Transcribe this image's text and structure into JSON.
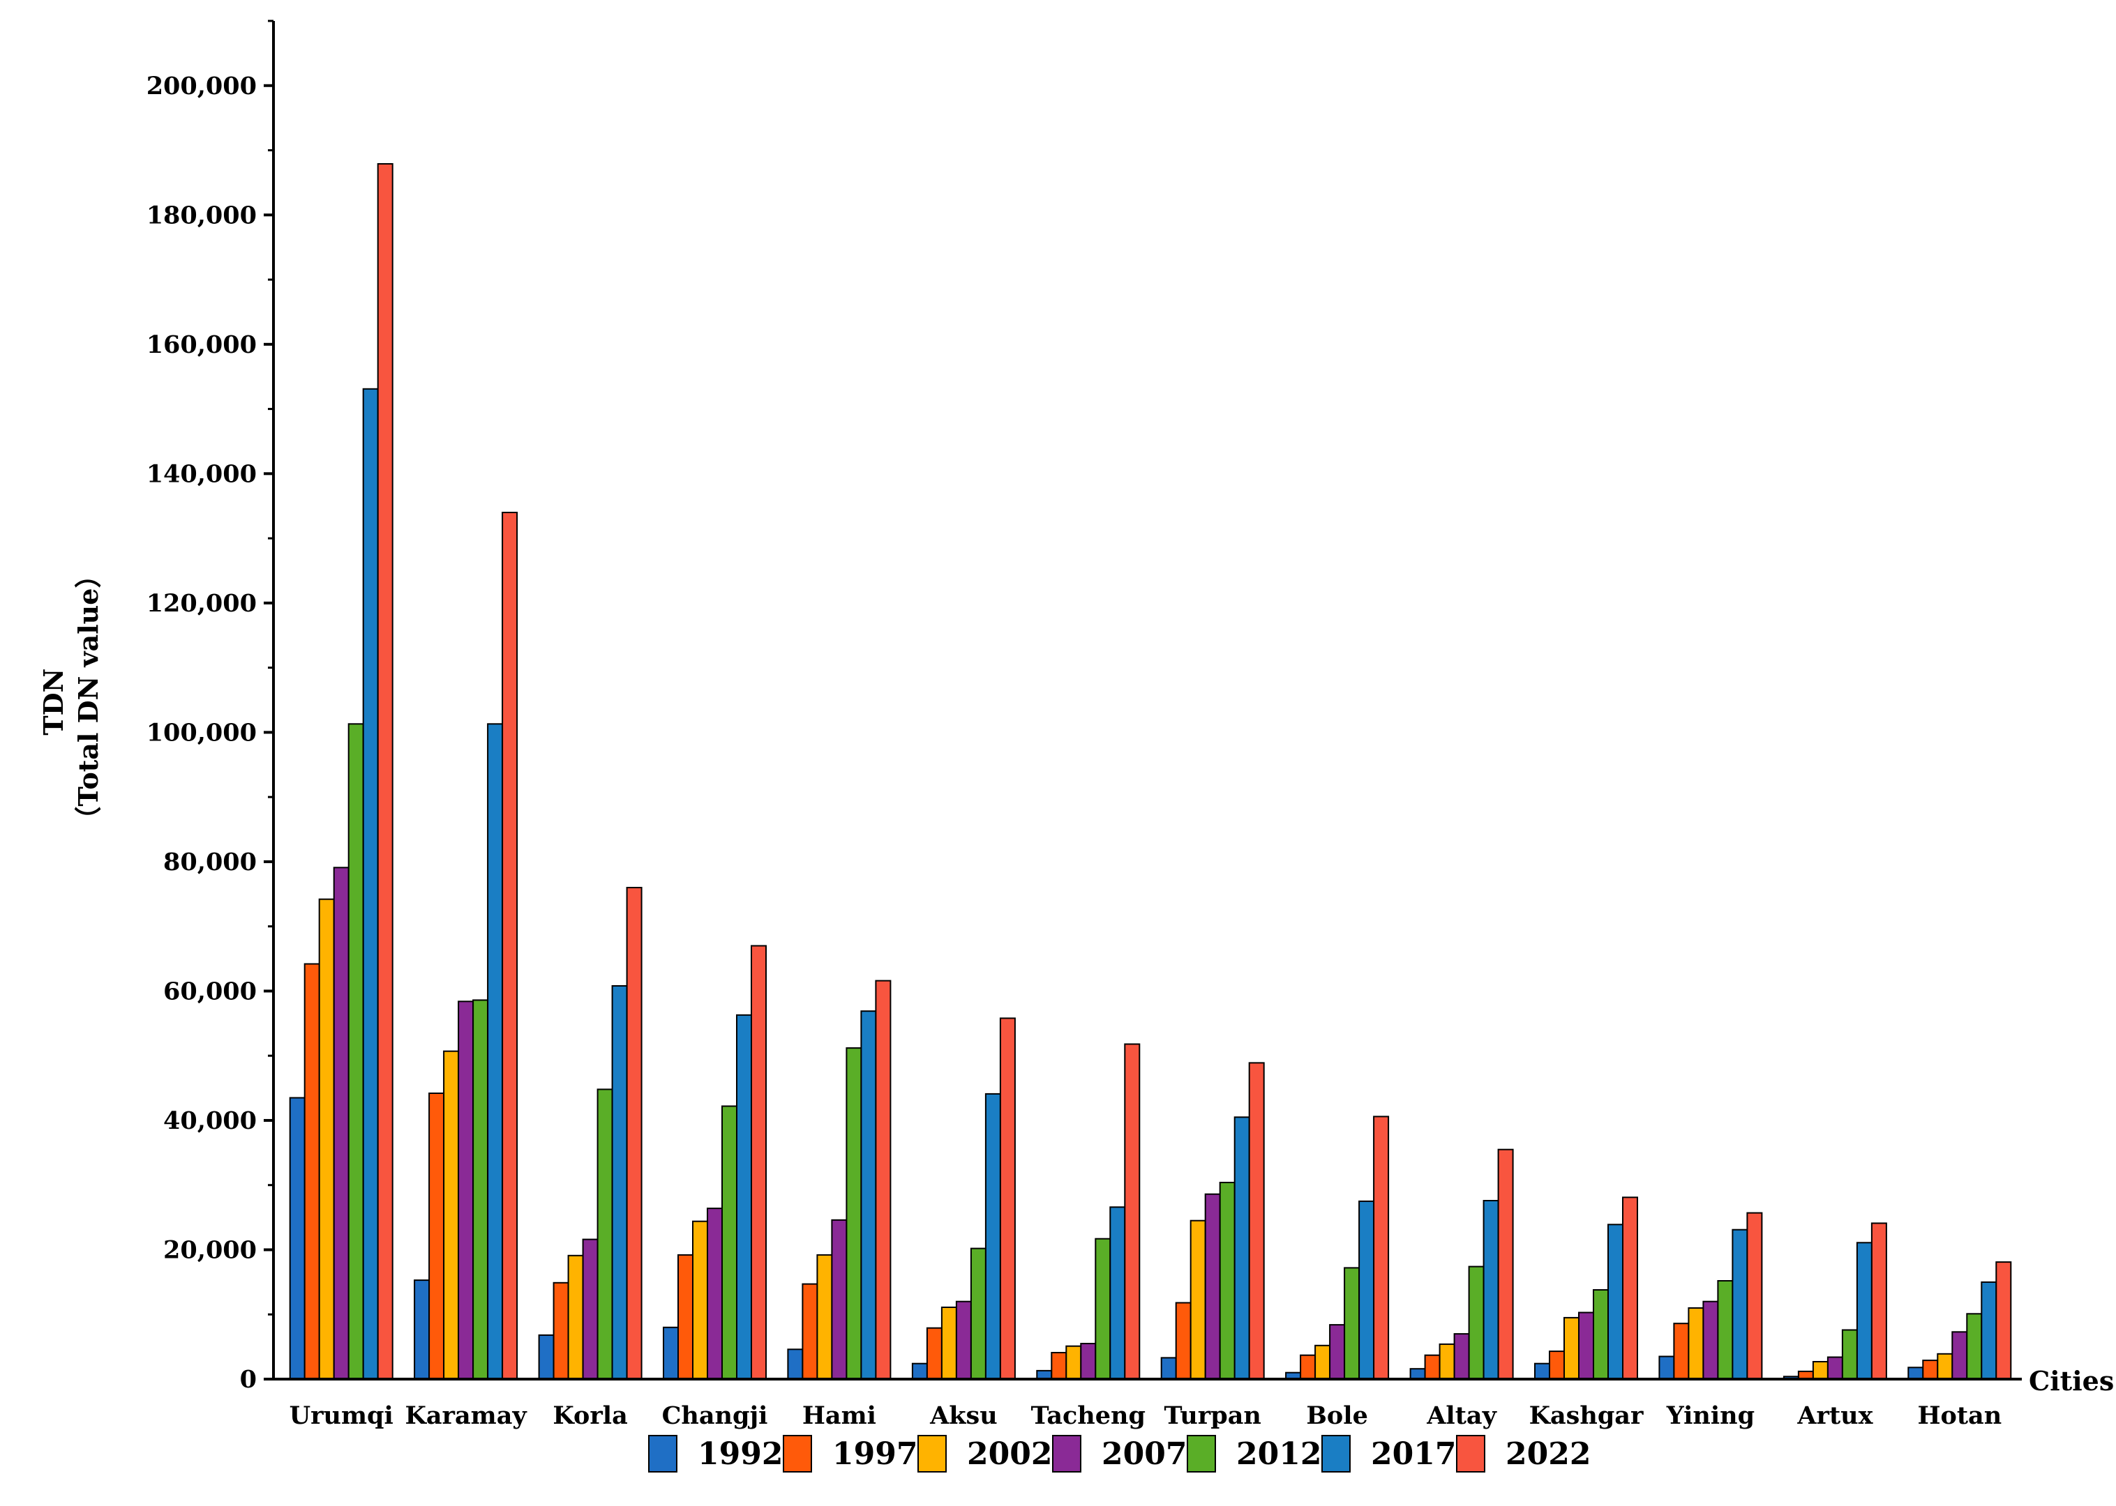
{
  "chart_data": {
    "type": "bar",
    "title": "",
    "xlabel": "Cities",
    "ylabel_line1": "TDN",
    "ylabel_line2": "（Total DN value）",
    "ylim": [
      0,
      210000
    ],
    "yticks": [
      0,
      20000,
      40000,
      60000,
      80000,
      100000,
      120000,
      140000,
      160000,
      180000,
      200000
    ],
    "ytick_labels": [
      "0",
      "20,000",
      "40,000",
      "60,000",
      "80,000",
      "100,000",
      "120,000",
      "140,000",
      "160,000",
      "180,000",
      "200,000"
    ],
    "grid": false,
    "legend_position": "bottom",
    "categories": [
      "Urumqi",
      "Karamay",
      "Korla",
      "Changji",
      "Hami",
      "Aksu",
      "Tacheng",
      "Turpan",
      "Bole",
      "Altay",
      "Kashgar",
      "Yining",
      "Artux",
      "Hotan"
    ],
    "series": [
      {
        "name": "1992",
        "color": "#1f6fc5",
        "values": [
          43500,
          15300,
          6800,
          8000,
          4600,
          2400,
          1300,
          3300,
          1000,
          1600,
          2400,
          3500,
          400,
          1800
        ]
      },
      {
        "name": "1997",
        "color": "#ff5a0a",
        "values": [
          64200,
          44200,
          14900,
          19200,
          14700,
          7900,
          4100,
          11800,
          3700,
          3700,
          4300,
          8600,
          1200,
          2900
        ]
      },
      {
        "name": "2002",
        "color": "#ffb300",
        "values": [
          74200,
          50700,
          19100,
          24400,
          19200,
          11100,
          5100,
          24500,
          5200,
          5400,
          9500,
          11000,
          2700,
          3900
        ]
      },
      {
        "name": "2007",
        "color": "#8a2a96",
        "values": [
          79100,
          58400,
          21600,
          26400,
          24600,
          12000,
          5500,
          28600,
          8400,
          7000,
          10300,
          12000,
          3400,
          7300
        ]
      },
      {
        "name": "2012",
        "color": "#5aae27",
        "values": [
          101300,
          58600,
          44800,
          42200,
          51200,
          20200,
          21700,
          30400,
          17200,
          17400,
          13800,
          15200,
          7600,
          10100
        ]
      },
      {
        "name": "2017",
        "color": "#1a7ec4",
        "values": [
          153100,
          101300,
          60800,
          56300,
          56900,
          44100,
          26600,
          40500,
          27500,
          27600,
          23900,
          23100,
          21100,
          15000
        ]
      },
      {
        "name": "2022",
        "color": "#f8553f",
        "values": [
          187900,
          134000,
          76000,
          67000,
          61600,
          55800,
          51800,
          48900,
          40600,
          35500,
          28100,
          25700,
          24100,
          18100
        ]
      }
    ]
  }
}
